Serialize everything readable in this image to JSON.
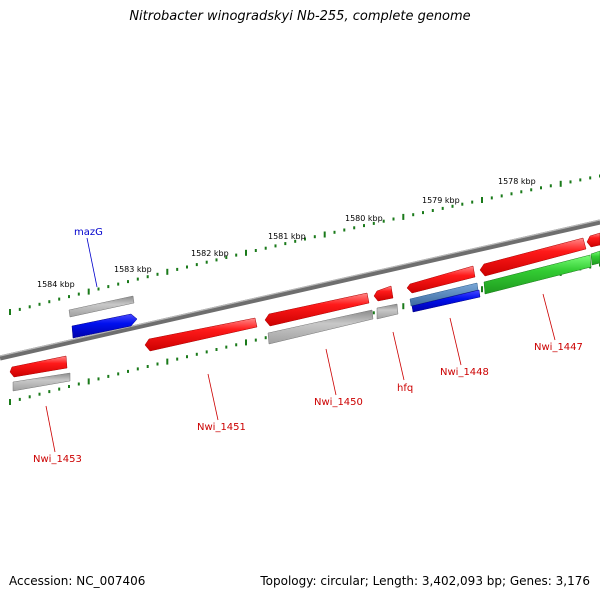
{
  "title": "Nitrobacter winogradskyi Nb-255, complete genome",
  "footer": {
    "accession": "Accession: NC_007406",
    "summary": "Topology: circular; Length: 3,402,093 bp; Genes: 3,176"
  },
  "ruler_labels": [
    "1584 kbp",
    "1583 kbp",
    "1582 kbp",
    "1581 kbp",
    "1580 kbp",
    "1579 kbp",
    "1578 kbp"
  ],
  "gene_labels": {
    "mazG": "mazG",
    "nwi1453": "Nwi_1453",
    "nwi1451": "Nwi_1451",
    "nwi1450": "Nwi_1450",
    "hfq": "hfq",
    "nwi1448": "Nwi_1448",
    "nwi1447": "Nwi_1447"
  },
  "colors": {
    "backbone": "#808080",
    "ruler_tick": "#1a7a1a",
    "cds_red": "#ee1111",
    "gene_gray": "#b4b4b4",
    "blue": "#0a12ee",
    "steel_blue": "#4b7fb6",
    "green": "#33cc33",
    "label_red": "#cc0000",
    "label_blue": "#0000cc"
  }
}
